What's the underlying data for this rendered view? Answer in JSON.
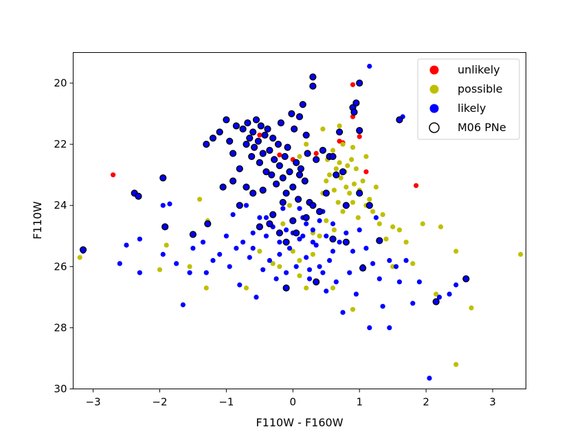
{
  "chart_data": {
    "type": "scatter",
    "title": "",
    "xlabel": "F110W - F160W",
    "ylabel": "F110W",
    "xlim": [
      -3.3,
      3.5
    ],
    "ylim": [
      30,
      19
    ],
    "y_inverted": true,
    "xticks": [
      "-3",
      "-2",
      "-1",
      "0",
      "1",
      "2",
      "3"
    ],
    "yticks": [
      "20",
      "22",
      "24",
      "26",
      "28",
      "30"
    ],
    "grid": false,
    "legend_position": "top-right",
    "legend": [
      "unlikely",
      "possible",
      "likely",
      "M06 PNe"
    ],
    "colors": {
      "unlikely": "#ff0000",
      "possible": "#bfbf00",
      "likely": "#0000ff",
      "m06_outline": "#000000"
    },
    "series": [
      {
        "name": "unlikely",
        "color": "#ff0000",
        "points": [
          [
            -2.7,
            23.0
          ],
          [
            0.9,
            20.05
          ],
          [
            1.0,
            20.0
          ],
          [
            0.9,
            21.1
          ],
          [
            1.0,
            21.75
          ],
          [
            0.7,
            21.9
          ],
          [
            0.75,
            21.95
          ],
          [
            1.1,
            22.9
          ],
          [
            1.85,
            23.35
          ],
          [
            -0.2,
            22.35
          ],
          [
            0.0,
            22.5
          ],
          [
            -0.5,
            21.7
          ],
          [
            0.35,
            22.3
          ]
        ]
      },
      {
        "name": "possible",
        "color": "#bfbf00",
        "points": [
          [
            -3.2,
            25.7
          ],
          [
            -2.0,
            26.1
          ],
          [
            -1.9,
            25.3
          ],
          [
            -1.55,
            26.0
          ],
          [
            -1.4,
            23.8
          ],
          [
            -1.3,
            26.7
          ],
          [
            -1.28,
            24.5
          ],
          [
            -0.7,
            26.7
          ],
          [
            -0.5,
            25.5
          ],
          [
            -0.3,
            25.9
          ],
          [
            -0.2,
            26.0
          ],
          [
            -0.15,
            24.6
          ],
          [
            -0.1,
            25.2
          ],
          [
            -0.05,
            24.0
          ],
          [
            0.0,
            25.5
          ],
          [
            0.1,
            26.3
          ],
          [
            0.2,
            26.7
          ],
          [
            0.3,
            24.9
          ],
          [
            0.4,
            25.0
          ],
          [
            0.45,
            23.6
          ],
          [
            0.5,
            23.2
          ],
          [
            0.52,
            22.5
          ],
          [
            0.55,
            23.0
          ],
          [
            0.6,
            22.2
          ],
          [
            0.62,
            23.5
          ],
          [
            0.65,
            22.8
          ],
          [
            0.68,
            23.9
          ],
          [
            0.7,
            22.6
          ],
          [
            0.72,
            23.1
          ],
          [
            0.75,
            24.2
          ],
          [
            0.78,
            22.9
          ],
          [
            0.8,
            23.4
          ],
          [
            0.82,
            22.7
          ],
          [
            0.85,
            23.6
          ],
          [
            0.88,
            22.5
          ],
          [
            0.9,
            23.9
          ],
          [
            0.92,
            23.3
          ],
          [
            0.95,
            22.8
          ],
          [
            0.98,
            24.4
          ],
          [
            1.0,
            23.5
          ],
          [
            1.05,
            23.2
          ],
          [
            1.1,
            24.0
          ],
          [
            1.15,
            23.8
          ],
          [
            1.2,
            24.2
          ],
          [
            1.25,
            23.4
          ],
          [
            1.3,
            24.6
          ],
          [
            1.35,
            24.3
          ],
          [
            1.4,
            25.1
          ],
          [
            1.5,
            24.7
          ],
          [
            1.6,
            24.8
          ],
          [
            1.7,
            25.2
          ],
          [
            1.8,
            25.9
          ],
          [
            1.95,
            24.6
          ],
          [
            2.15,
            26.9
          ],
          [
            2.22,
            24.7
          ],
          [
            2.45,
            25.5
          ],
          [
            2.45,
            29.2
          ],
          [
            2.68,
            27.35
          ],
          [
            3.42,
            25.6
          ],
          [
            0.6,
            26.7
          ],
          [
            0.9,
            27.4
          ],
          [
            1.5,
            26.0
          ],
          [
            0.75,
            22.0
          ],
          [
            0.9,
            22.1
          ],
          [
            1.1,
            22.4
          ],
          [
            0.7,
            21.4
          ],
          [
            0.2,
            22.0
          ],
          [
            0.1,
            22.4
          ],
          [
            0.45,
            21.5
          ],
          [
            0.5,
            24.5
          ],
          [
            0.62,
            24.8
          ],
          [
            0.3,
            25.6
          ],
          [
            0.1,
            25.8
          ]
        ]
      },
      {
        "name": "likely",
        "color": "#0000ff",
        "points": [
          [
            -3.15,
            25.5
          ],
          [
            -2.6,
            25.9
          ],
          [
            -2.5,
            25.3
          ],
          [
            -2.3,
            25.1
          ],
          [
            -2.3,
            26.2
          ],
          [
            -1.95,
            24.0
          ],
          [
            -1.95,
            25.6
          ],
          [
            -1.85,
            23.95
          ],
          [
            -1.75,
            25.9
          ],
          [
            -1.65,
            27.25
          ],
          [
            -1.55,
            26.2
          ],
          [
            -1.5,
            25.4
          ],
          [
            -1.35,
            25.2
          ],
          [
            -1.3,
            26.2
          ],
          [
            -1.2,
            25.8
          ],
          [
            -1.1,
            25.6
          ],
          [
            -1.0,
            25.0
          ],
          [
            -0.95,
            26.0
          ],
          [
            -0.9,
            24.3
          ],
          [
            -0.85,
            25.4
          ],
          [
            -0.8,
            26.6
          ],
          [
            -0.75,
            25.2
          ],
          [
            -0.7,
            24.0
          ],
          [
            -0.65,
            25.7
          ],
          [
            -0.6,
            24.9
          ],
          [
            -0.55,
            27.0
          ],
          [
            -0.5,
            24.4
          ],
          [
            -0.45,
            26.1
          ],
          [
            -0.4,
            25.0
          ],
          [
            -0.35,
            25.8
          ],
          [
            -0.3,
            24.7
          ],
          [
            -0.25,
            26.4
          ],
          [
            -0.2,
            25.2
          ],
          [
            -0.15,
            24.1
          ],
          [
            -0.1,
            26.2
          ],
          [
            -0.05,
            25.4
          ],
          [
            0.0,
            24.9
          ],
          [
            0.05,
            26.0
          ],
          [
            0.1,
            25.1
          ],
          [
            0.15,
            24.4
          ],
          [
            0.2,
            25.7
          ],
          [
            0.25,
            26.4
          ],
          [
            0.3,
            24.8
          ],
          [
            0.35,
            25.3
          ],
          [
            0.4,
            26.0
          ],
          [
            0.45,
            24.2
          ],
          [
            0.5,
            25.0
          ],
          [
            0.55,
            25.8
          ],
          [
            0.6,
            24.6
          ],
          [
            0.65,
            26.5
          ],
          [
            0.7,
            25.2
          ],
          [
            0.75,
            27.5
          ],
          [
            0.8,
            24.9
          ],
          [
            0.85,
            26.2
          ],
          [
            0.9,
            25.5
          ],
          [
            0.95,
            26.9
          ],
          [
            1.0,
            24.8
          ],
          [
            1.05,
            26.0
          ],
          [
            1.1,
            25.4
          ],
          [
            1.15,
            28.0
          ],
          [
            1.2,
            25.9
          ],
          [
            1.25,
            24.4
          ],
          [
            1.3,
            26.4
          ],
          [
            1.35,
            27.3
          ],
          [
            1.45,
            25.8
          ],
          [
            1.45,
            28.0
          ],
          [
            1.55,
            26.0
          ],
          [
            1.6,
            26.5
          ],
          [
            1.7,
            25.8
          ],
          [
            1.8,
            27.2
          ],
          [
            1.9,
            26.5
          ],
          [
            2.05,
            29.65
          ],
          [
            2.2,
            27.0
          ],
          [
            2.35,
            26.9
          ],
          [
            2.45,
            26.6
          ],
          [
            1.15,
            19.45
          ],
          [
            1.65,
            21.1
          ],
          [
            0.1,
            24.1
          ],
          [
            0.2,
            24.6
          ],
          [
            0.3,
            25.2
          ],
          [
            -0.2,
            25.6
          ],
          [
            -0.4,
            24.4
          ],
          [
            -0.6,
            25.4
          ],
          [
            0.6,
            25.5
          ],
          [
            0.45,
            26.2
          ],
          [
            0.15,
            25.0
          ],
          [
            -0.1,
            24.8
          ],
          [
            0.4,
            24.5
          ],
          [
            0.5,
            26.8
          ],
          [
            0.25,
            26.1
          ]
        ]
      },
      {
        "name": "M06 PNe",
        "color": "#0000ff",
        "outlined": true,
        "points": [
          [
            -3.15,
            25.45
          ],
          [
            -2.38,
            23.6
          ],
          [
            -2.32,
            23.7
          ],
          [
            -1.95,
            23.1
          ],
          [
            -1.92,
            24.7
          ],
          [
            -1.5,
            24.95
          ],
          [
            -1.28,
            24.6
          ],
          [
            -1.3,
            22.0
          ],
          [
            -1.2,
            21.8
          ],
          [
            -1.1,
            21.6
          ],
          [
            -1.0,
            21.2
          ],
          [
            -0.95,
            21.9
          ],
          [
            -0.9,
            22.3
          ],
          [
            -0.85,
            21.4
          ],
          [
            -0.8,
            22.8
          ],
          [
            -0.75,
            21.5
          ],
          [
            -0.7,
            22.0
          ],
          [
            -0.68,
            21.3
          ],
          [
            -0.65,
            21.8
          ],
          [
            -0.62,
            22.4
          ],
          [
            -0.6,
            21.6
          ],
          [
            -0.58,
            22.1
          ],
          [
            -0.55,
            21.2
          ],
          [
            -0.52,
            21.9
          ],
          [
            -0.5,
            22.6
          ],
          [
            -0.48,
            21.4
          ],
          [
            -0.45,
            22.3
          ],
          [
            -0.42,
            21.7
          ],
          [
            -0.4,
            22.9
          ],
          [
            -0.38,
            21.5
          ],
          [
            -0.35,
            22.2
          ],
          [
            -0.32,
            23.0
          ],
          [
            -0.3,
            21.8
          ],
          [
            -0.28,
            22.5
          ],
          [
            -0.25,
            23.3
          ],
          [
            -0.22,
            22.0
          ],
          [
            -0.2,
            22.7
          ],
          [
            -0.18,
            21.3
          ],
          [
            -0.15,
            23.1
          ],
          [
            -0.12,
            22.4
          ],
          [
            -0.1,
            23.6
          ],
          [
            -0.08,
            22.1
          ],
          [
            -0.05,
            22.9
          ],
          [
            -0.02,
            21.0
          ],
          [
            0.0,
            23.4
          ],
          [
            0.02,
            21.5
          ],
          [
            0.05,
            22.6
          ],
          [
            0.08,
            23.8
          ],
          [
            0.1,
            21.1
          ],
          [
            0.12,
            22.8
          ],
          [
            0.15,
            20.7
          ],
          [
            0.18,
            23.2
          ],
          [
            0.2,
            21.7
          ],
          [
            0.22,
            22.3
          ],
          [
            0.25,
            23.9
          ],
          [
            0.3,
            19.8
          ],
          [
            0.3,
            20.1
          ],
          [
            0.35,
            22.5
          ],
          [
            0.4,
            24.2
          ],
          [
            0.45,
            22.2
          ],
          [
            0.5,
            23.6
          ],
          [
            0.55,
            22.4
          ],
          [
            0.6,
            22.4
          ],
          [
            0.65,
            23.0
          ],
          [
            0.7,
            21.6
          ],
          [
            0.75,
            22.9
          ],
          [
            0.8,
            24.0
          ],
          [
            0.9,
            20.8
          ],
          [
            0.92,
            20.95
          ],
          [
            0.95,
            20.65
          ],
          [
            1.0,
            21.55
          ],
          [
            1.0,
            20.0
          ],
          [
            1.0,
            23.6
          ],
          [
            1.05,
            26.05
          ],
          [
            1.15,
            24.0
          ],
          [
            1.3,
            25.15
          ],
          [
            1.6,
            21.2
          ],
          [
            2.15,
            27.15
          ],
          [
            2.6,
            26.4
          ],
          [
            -0.1,
            26.7
          ],
          [
            -0.5,
            24.7
          ],
          [
            -0.8,
            24.0
          ],
          [
            -1.05,
            23.4
          ],
          [
            -0.9,
            23.2
          ],
          [
            -0.6,
            23.6
          ],
          [
            -0.3,
            24.3
          ],
          [
            0.0,
            24.5
          ],
          [
            -0.2,
            24.9
          ],
          [
            0.1,
            23.0
          ],
          [
            0.3,
            24.0
          ],
          [
            -0.7,
            23.4
          ],
          [
            -0.45,
            23.5
          ],
          [
            -0.15,
            23.9
          ],
          [
            0.2,
            24.4
          ],
          [
            -0.35,
            24.6
          ],
          [
            0.05,
            24.9
          ],
          [
            0.35,
            26.5
          ],
          [
            0.6,
            25.1
          ],
          [
            0.8,
            25.2
          ],
          [
            -0.1,
            25.2
          ]
        ]
      }
    ]
  }
}
